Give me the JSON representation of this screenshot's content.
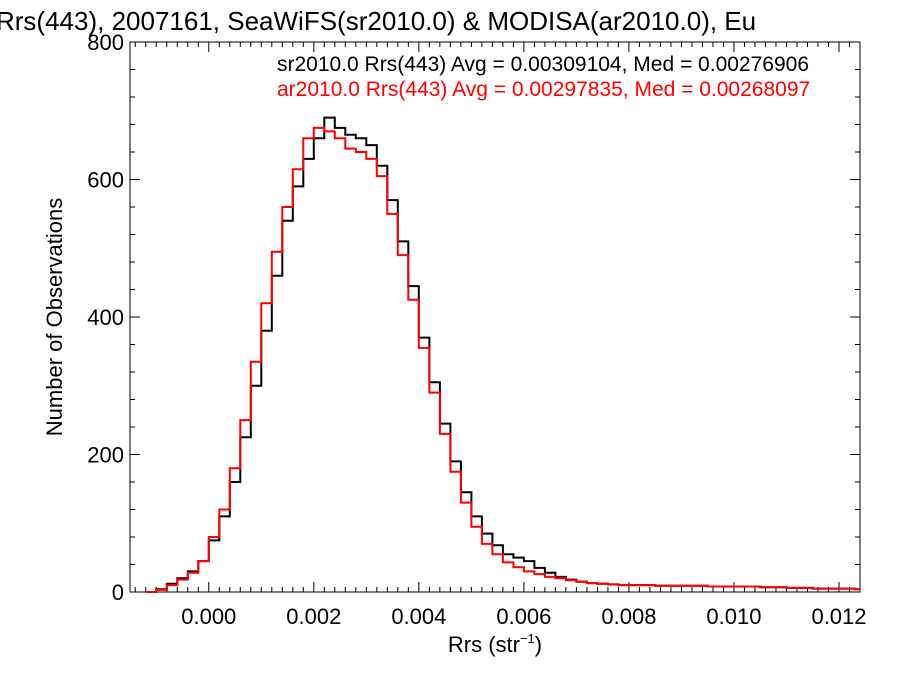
{
  "chart_data": {
    "type": "line",
    "title": "Rrs(443), 2007161, SeaWiFS(sr2010.0) & MODISA(ar2010.0), Eu",
    "xlabel": "Rrs (str",
    "xlabel_sup": "−1",
    "xlabel_close": ")",
    "ylabel": "Number of Observations",
    "xlim": [
      -0.0015,
      0.0124
    ],
    "ylim": [
      0,
      800
    ],
    "x_ticks": [
      0.0,
      0.002,
      0.004,
      0.006,
      0.008,
      0.01,
      0.012
    ],
    "x_tick_labels": [
      "0.000",
      "0.002",
      "0.004",
      "0.006",
      "0.008",
      "0.010",
      "0.012"
    ],
    "y_ticks": [
      0,
      200,
      400,
      600,
      800
    ],
    "y_tick_labels": [
      "0",
      "200",
      "400",
      "600",
      "800"
    ],
    "grid": false,
    "legend_position": "top-right",
    "series": [
      {
        "name": "sr2010.0 Rrs(443)",
        "legend_text": "sr2010.0 Rrs(443) Avg = 0.00309104, Med = 0.00276906",
        "color": "#000000",
        "x": [
          -0.0012,
          -0.001,
          -0.0008,
          -0.0006,
          -0.0004,
          -0.0002,
          0.0,
          0.0002,
          0.0004,
          0.0006,
          0.0008,
          0.001,
          0.0012,
          0.0014,
          0.0016,
          0.0018,
          0.002,
          0.0022,
          0.0024,
          0.0026,
          0.0028,
          0.003,
          0.0032,
          0.0034,
          0.0036,
          0.0038,
          0.004,
          0.0042,
          0.0044,
          0.0046,
          0.0048,
          0.005,
          0.0052,
          0.0054,
          0.0056,
          0.0058,
          0.006,
          0.0062,
          0.0064,
          0.0066,
          0.0068,
          0.007,
          0.0072,
          0.0074,
          0.0076,
          0.0078,
          0.008,
          0.0085,
          0.009,
          0.0095,
          0.01,
          0.0105,
          0.011,
          0.0115,
          0.012,
          0.0123
        ],
        "y": [
          0,
          4,
          12,
          20,
          30,
          45,
          75,
          110,
          160,
          225,
          300,
          380,
          460,
          540,
          590,
          630,
          660,
          690,
          675,
          665,
          660,
          650,
          620,
          570,
          510,
          445,
          370,
          305,
          245,
          190,
          145,
          110,
          85,
          68,
          55,
          50,
          45,
          35,
          28,
          22,
          18,
          15,
          13,
          12,
          11,
          10,
          10,
          9,
          9,
          8,
          8,
          7,
          6,
          5,
          5,
          4
        ]
      },
      {
        "name": "ar2010.0 Rrs(443)",
        "legend_text": "ar2010.0 Rrs(443) Avg = 0.00297835, Med = 0.00268097",
        "color": "#ff0000",
        "x": [
          -0.0012,
          -0.001,
          -0.0008,
          -0.0006,
          -0.0004,
          -0.0002,
          0.0,
          0.0002,
          0.0004,
          0.0006,
          0.0008,
          0.001,
          0.0012,
          0.0014,
          0.0016,
          0.0018,
          0.002,
          0.0022,
          0.0024,
          0.0026,
          0.0028,
          0.003,
          0.0032,
          0.0034,
          0.0036,
          0.0038,
          0.004,
          0.0042,
          0.0044,
          0.0046,
          0.0048,
          0.005,
          0.0052,
          0.0054,
          0.0056,
          0.0058,
          0.006,
          0.0062,
          0.0064,
          0.0066,
          0.0068,
          0.007,
          0.0072,
          0.0074,
          0.0076,
          0.0078,
          0.008,
          0.0085,
          0.009,
          0.0095,
          0.01,
          0.0105,
          0.011,
          0.0115,
          0.012,
          0.0123
        ],
        "y": [
          0,
          3,
          10,
          18,
          28,
          45,
          80,
          120,
          180,
          250,
          335,
          420,
          495,
          560,
          615,
          660,
          675,
          670,
          660,
          645,
          640,
          630,
          605,
          550,
          490,
          425,
          355,
          290,
          230,
          175,
          130,
          95,
          70,
          55,
          43,
          36,
          30,
          26,
          22,
          20,
          17,
          15,
          13,
          12,
          11,
          10,
          10,
          9,
          9,
          8,
          8,
          7,
          6,
          5,
          5,
          4
        ]
      }
    ]
  }
}
